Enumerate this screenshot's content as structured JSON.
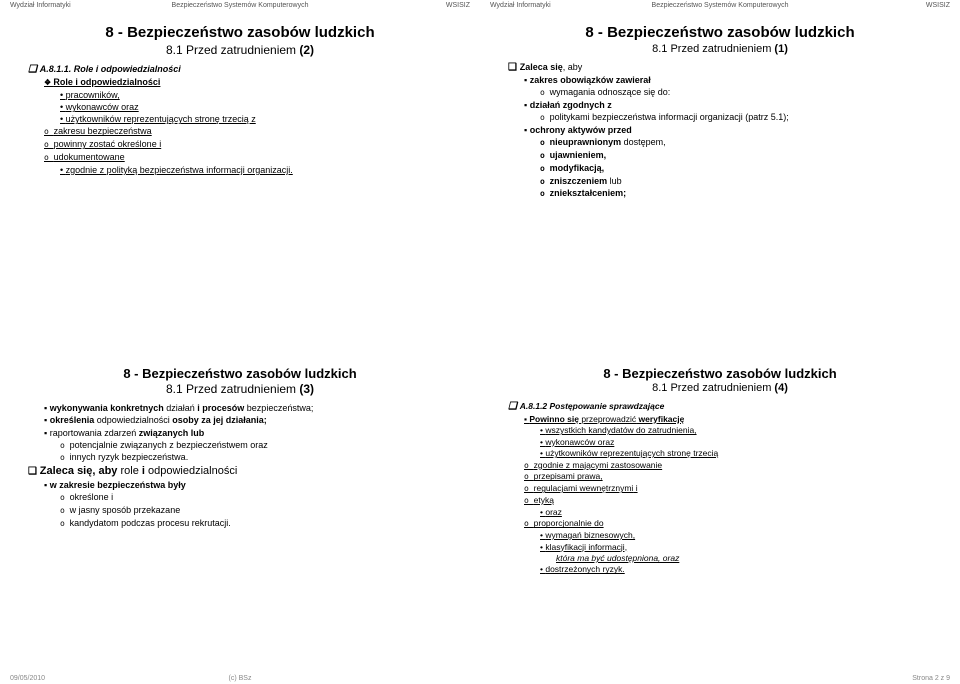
{
  "header": {
    "left": "Wydział Informatyki",
    "center": "Bezpieczeństwo Systemów Komputerowych",
    "right": "WSISIZ"
  },
  "footer": {
    "left": "09/05/2010",
    "center": "(c) BSz",
    "right": "Strona 2 z 9"
  },
  "title_sizes": {
    "s1": "15px",
    "s2": "15px",
    "s3": "13px",
    "s4": "13px"
  },
  "subtitle_sizes": {
    "s1": "12px",
    "s2": "11px",
    "s3": "12px",
    "s4": "11px"
  },
  "s1": {
    "title": "8 - Bezpieczeństwo zasobów ludzkich",
    "sub_a": "8.1 Przed zatrudnieniem ",
    "sub_b": "(2)",
    "l1": "A.8.1.1. Role i odpowiedzialności",
    "l2": "Role i odpowiedzialności",
    "l3": "pracowników,",
    "l4": "wykonawców oraz",
    "l5": "użytkowników reprezentujących stronę trzecią z",
    "l6": "zakresu bezpieczeństwa",
    "l7": "powinny zostać określone i",
    "l8": "udokumentowane",
    "l9": "zgodnie z polityką bezpieczeństwa informacji organizacji."
  },
  "s2": {
    "title": "8 - Bezpieczeństwo zasobów ludzkich",
    "sub_a": "8.1 Przed zatrudnieniem ",
    "sub_b": "(1)",
    "l1a": "Zaleca się",
    "l1b": ", aby",
    "l2": "zakres obowiązków zawierał",
    "l3": "wymagania odnoszące się do:",
    "l4": "działań zgodnych z",
    "l5": "politykami bezpieczeństwa informacji organizacji (patrz 5.1);",
    "l6": "ochrony aktywów przed",
    "l7a": "nieuprawnionym ",
    "l7b": "dostępem,",
    "l8": "ujawnieniem,",
    "l9": "modyfikacją,",
    "l10a": "zniszczeniem ",
    "l10b": "lub",
    "l11": "zniekształceniem;"
  },
  "s3": {
    "title": "8 - Bezpieczeństwo zasobów ludzkich",
    "sub_a": "8.1 Przed zatrudnieniem ",
    "sub_b": "(3)",
    "l1a": "wykonywania konkretnych ",
    "l1b": "działań",
    "l1c": " i procesów ",
    "l1d": "bezpieczeństwa",
    "l1e": ";",
    "l2a": "określenia ",
    "l2b": "odpowiedzialności",
    "l2c": " osoby za jej działania;",
    "l3a": "raportowania ",
    "l3b": "zdarzeń",
    "l3c": " związanych lub",
    "l4": "potencjalnie związanych z bezpieczeństwem oraz",
    "l5": "innych ryzyk bezpieczeństwa.",
    "l6a": "Zaleca ",
    "l6b": "się",
    "l6c": ", aby ",
    "l6d": "role",
    "l6e": " i ",
    "l6f": "odpowiedzialności",
    "l7": "w zakresie bezpieczeństwa były",
    "l8": "określone i",
    "l9": "w jasny sposób przekazane",
    "l10": "kandydatom podczas procesu rekrutacji."
  },
  "s4": {
    "title": "8 - Bezpieczeństwo zasobów ludzkich",
    "sub_a": "8.1 Przed zatrudnieniem ",
    "sub_b": "(4)",
    "l1": "A.8.1.2 Postępowanie sprawdzające",
    "l2a": "Powinno się ",
    "l2b": "przeprowadzić",
    "l2c": " weryfikację",
    "l3": "wszystkich kandydatów do zatrudnienia,",
    "l4": "wykonawców oraz",
    "l5": "użytkowników reprezentujących stronę trzecią",
    "l6": "zgodnie z mającymi zastosowanie",
    "l7": "przepisami prawa,",
    "l8a": "regulacjami ",
    "l8b": "wewnętrznymi",
    "l8c": " i",
    "l9": "etyką",
    "l10": "oraz",
    "l11": "proporcjonalnie do",
    "l12": "wymagań biznesowych,",
    "l13": "klasyfikacji informacji,",
    "l14": "która ma być udostępniona, oraz",
    "l15": "dostrzeżonych ryzyk."
  }
}
